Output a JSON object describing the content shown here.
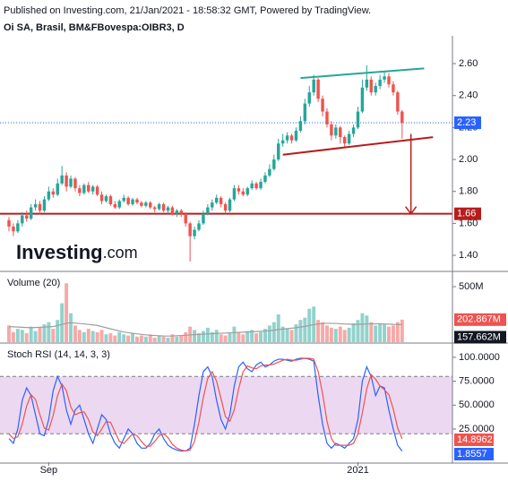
{
  "header": {
    "published": "Published on Investing.com, 21/Jan/2021 - 18:58:32 GMT, Powered by TradingView.",
    "symbol": "Oi SA, Brasil, BM&FBovespa:OIBR3, D"
  },
  "watermark": {
    "name": "Investing",
    "suffix": ".com"
  },
  "chart_data": [
    {
      "type": "candlestick",
      "xlim": [
        -2.03,
        100.4
      ],
      "ylim": [
        1.305,
        2.774
      ],
      "yticks": [
        {
          "value": 1.4,
          "label": "1.40"
        },
        {
          "value": 1.6,
          "label": "1.60"
        },
        {
          "value": 1.8,
          "label": "1.80"
        },
        {
          "value": 2.0,
          "label": "2.00"
        },
        {
          "value": 2.2,
          "label": "2.20"
        },
        {
          "value": 2.4,
          "label": "2.40"
        },
        {
          "value": 2.6,
          "label": "2.60"
        }
      ],
      "up_color": "#26a69a",
      "down_color": "#ef5350",
      "price_line": 2.23,
      "price_color": "#2962ff",
      "support_line": 1.66,
      "support_color": "#b71c1c",
      "trendlines": [
        {
          "color": "#26a69a",
          "x": [
            66,
            94
          ],
          "y": [
            2.51,
            2.57
          ]
        },
        {
          "color": "#b71c1c",
          "x": [
            62,
            96
          ],
          "y": [
            2.03,
            2.14
          ]
        }
      ],
      "arrow": {
        "color": "#b71c1c",
        "x": 91,
        "y": [
          2.16,
          1.66
        ]
      },
      "ohlc": [
        [
          1.62,
          1.64,
          1.55,
          1.58
        ],
        [
          1.58,
          1.6,
          1.52,
          1.55
        ],
        [
          1.55,
          1.62,
          1.54,
          1.6
        ],
        [
          1.6,
          1.67,
          1.58,
          1.65
        ],
        [
          1.65,
          1.68,
          1.61,
          1.63
        ],
        [
          1.63,
          1.72,
          1.62,
          1.7
        ],
        [
          1.7,
          1.75,
          1.68,
          1.72
        ],
        [
          1.72,
          1.74,
          1.66,
          1.68
        ],
        [
          1.68,
          1.77,
          1.67,
          1.75
        ],
        [
          1.75,
          1.83,
          1.74,
          1.8
        ],
        [
          1.8,
          1.82,
          1.76,
          1.78
        ],
        [
          1.78,
          1.88,
          1.77,
          1.85
        ],
        [
          1.85,
          1.96,
          1.84,
          1.9
        ],
        [
          1.9,
          1.92,
          1.8,
          1.83
        ],
        [
          1.83,
          1.9,
          1.82,
          1.88
        ],
        [
          1.88,
          1.89,
          1.8,
          1.82
        ],
        [
          1.82,
          1.84,
          1.77,
          1.79
        ],
        [
          1.79,
          1.85,
          1.78,
          1.84
        ],
        [
          1.84,
          1.86,
          1.79,
          1.8
        ],
        [
          1.8,
          1.84,
          1.78,
          1.83
        ],
        [
          1.83,
          1.84,
          1.77,
          1.78
        ],
        [
          1.78,
          1.8,
          1.72,
          1.74
        ],
        [
          1.74,
          1.78,
          1.73,
          1.77
        ],
        [
          1.77,
          1.78,
          1.71,
          1.72
        ],
        [
          1.72,
          1.74,
          1.69,
          1.7
        ],
        [
          1.7,
          1.75,
          1.69,
          1.74
        ],
        [
          1.74,
          1.78,
          1.73,
          1.76
        ],
        [
          1.76,
          1.77,
          1.71,
          1.72
        ],
        [
          1.72,
          1.76,
          1.71,
          1.75
        ],
        [
          1.75,
          1.76,
          1.72,
          1.73
        ],
        [
          1.73,
          1.74,
          1.7,
          1.71
        ],
        [
          1.71,
          1.74,
          1.7,
          1.73
        ],
        [
          1.73,
          1.74,
          1.69,
          1.7
        ],
        [
          1.7,
          1.71,
          1.67,
          1.69
        ],
        [
          1.69,
          1.73,
          1.68,
          1.72
        ],
        [
          1.72,
          1.73,
          1.67,
          1.68
        ],
        [
          1.68,
          1.71,
          1.66,
          1.7
        ],
        [
          1.7,
          1.71,
          1.65,
          1.66
        ],
        [
          1.66,
          1.69,
          1.64,
          1.68
        ],
        [
          1.68,
          1.69,
          1.64,
          1.66
        ],
        [
          1.66,
          1.67,
          1.58,
          1.6
        ],
        [
          1.6,
          1.61,
          1.36,
          1.52
        ],
        [
          1.52,
          1.58,
          1.5,
          1.56
        ],
        [
          1.56,
          1.62,
          1.55,
          1.6
        ],
        [
          1.6,
          1.68,
          1.59,
          1.66
        ],
        [
          1.66,
          1.72,
          1.65,
          1.7
        ],
        [
          1.7,
          1.75,
          1.68,
          1.73
        ],
        [
          1.73,
          1.78,
          1.72,
          1.76
        ],
        [
          1.76,
          1.77,
          1.7,
          1.72
        ],
        [
          1.72,
          1.73,
          1.66,
          1.68
        ],
        [
          1.68,
          1.76,
          1.67,
          1.75
        ],
        [
          1.75,
          1.84,
          1.74,
          1.82
        ],
        [
          1.82,
          1.84,
          1.78,
          1.8
        ],
        [
          1.8,
          1.82,
          1.77,
          1.78
        ],
        [
          1.78,
          1.83,
          1.77,
          1.82
        ],
        [
          1.82,
          1.87,
          1.81,
          1.85
        ],
        [
          1.85,
          1.86,
          1.81,
          1.82
        ],
        [
          1.82,
          1.88,
          1.81,
          1.86
        ],
        [
          1.86,
          1.92,
          1.85,
          1.9
        ],
        [
          1.9,
          1.97,
          1.89,
          1.94
        ],
        [
          1.94,
          2.03,
          1.93,
          2.0
        ],
        [
          2.0,
          2.13,
          1.99,
          2.1
        ],
        [
          2.1,
          2.16,
          2.08,
          2.12
        ],
        [
          2.12,
          2.17,
          2.1,
          2.15
        ],
        [
          2.15,
          2.16,
          2.1,
          2.12
        ],
        [
          2.12,
          2.2,
          2.11,
          2.18
        ],
        [
          2.18,
          2.27,
          2.17,
          2.24
        ],
        [
          2.24,
          2.38,
          2.22,
          2.35
        ],
        [
          2.35,
          2.46,
          2.33,
          2.42
        ],
        [
          2.42,
          2.53,
          2.4,
          2.5
        ],
        [
          2.5,
          2.51,
          2.36,
          2.38
        ],
        [
          2.38,
          2.4,
          2.27,
          2.3
        ],
        [
          2.3,
          2.32,
          2.2,
          2.22
        ],
        [
          2.22,
          2.24,
          2.12,
          2.15
        ],
        [
          2.15,
          2.22,
          2.13,
          2.2
        ],
        [
          2.2,
          2.21,
          2.1,
          2.14
        ],
        [
          2.14,
          2.15,
          2.07,
          2.1
        ],
        [
          2.1,
          2.18,
          2.09,
          2.16
        ],
        [
          2.16,
          2.22,
          2.14,
          2.2
        ],
        [
          2.2,
          2.33,
          2.19,
          2.3
        ],
        [
          2.3,
          2.5,
          2.29,
          2.45
        ],
        [
          2.45,
          2.59,
          2.43,
          2.5
        ],
        [
          2.5,
          2.52,
          2.4,
          2.42
        ],
        [
          2.42,
          2.48,
          2.4,
          2.46
        ],
        [
          2.46,
          2.53,
          2.44,
          2.5
        ],
        [
          2.5,
          2.55,
          2.48,
          2.52
        ],
        [
          2.52,
          2.54,
          2.45,
          2.47
        ],
        [
          2.47,
          2.49,
          2.4,
          2.42
        ],
        [
          2.42,
          2.43,
          2.28,
          2.3
        ],
        [
          2.3,
          2.31,
          2.13,
          2.23
        ]
      ]
    },
    {
      "type": "volume",
      "title": "Volume (20)",
      "xlim": [
        -2.03,
        100.4
      ],
      "ylim": [
        0,
        629
      ],
      "yticks": [
        {
          "value": 500,
          "label": "500M"
        }
      ],
      "up_color": "rgba(38,166,154,0.5)",
      "down_color": "rgba(239,83,80,0.5)",
      "values": [
        150,
        90,
        120,
        110,
        80,
        140,
        100,
        130,
        160,
        180,
        120,
        200,
        350,
        530,
        260,
        150,
        110,
        90,
        120,
        100,
        90,
        110,
        70,
        80,
        60,
        90,
        70,
        60,
        80,
        50,
        60,
        50,
        70,
        40,
        60,
        50,
        40,
        70,
        50,
        60,
        90,
        140,
        110,
        80,
        100,
        130,
        90,
        110,
        70,
        60,
        80,
        140,
        90,
        70,
        100,
        110,
        80,
        90,
        120,
        150,
        180,
        250,
        140,
        120,
        110,
        160,
        200,
        220,
        300,
        320,
        200,
        180,
        150,
        130,
        120,
        140,
        110,
        130,
        170,
        200,
        260,
        240,
        180,
        150,
        170,
        160,
        140,
        150,
        180,
        202.867
      ],
      "last_value_label": "202.867M",
      "label_color": "#ef5350",
      "ma": {
        "color": "#9e9e9e",
        "label_color": "#131722",
        "last_value_label": "157.662M",
        "values": [
          140,
          138,
          136,
          134,
          132,
          130,
          132,
          134,
          136,
          138,
          140,
          150,
          160,
          170,
          175,
          172,
          168,
          165,
          160,
          155,
          150,
          140,
          130,
          120,
          110,
          100,
          92,
          85,
          80,
          75,
          70,
          66,
          62,
          60,
          58,
          56,
          55,
          56,
          58,
          60,
          62,
          65,
          68,
          70,
          72,
          74,
          76,
          78,
          80,
          82,
          84,
          86,
          88,
          90,
          92,
          94,
          96,
          98,
          100,
          104,
          108,
          114,
          118,
          122,
          126,
          130,
          136,
          142,
          150,
          158,
          164,
          168,
          170,
          170,
          168,
          166,
          164,
          162,
          160,
          160,
          162,
          164,
          165,
          166,
          165,
          164,
          162,
          160,
          159,
          157.662
        ]
      }
    },
    {
      "type": "line",
      "title": "Stoch RSI (14, 14, 3, 3)",
      "xlim": [
        -2.03,
        100.4
      ],
      "ylim": [
        -9.7,
        114
      ],
      "band": [
        20,
        80
      ],
      "band_color": "rgba(156,39,176,0.18)",
      "yticks": [
        {
          "value": 100,
          "label": "100.0000"
        },
        {
          "value": 75,
          "label": "75.0000"
        },
        {
          "value": 50,
          "label": "50.0000"
        },
        {
          "value": 25,
          "label": "25.0000"
        }
      ],
      "xticks": [
        {
          "value": 9,
          "label": "Sep"
        },
        {
          "value": 79,
          "label": "2021"
        }
      ],
      "series": [
        {
          "color": "#2962ff",
          "last_value_label": "1.8557",
          "values": [
            15,
            10,
            25,
            55,
            68,
            60,
            40,
            20,
            18,
            35,
            65,
            80,
            70,
            45,
            30,
            45,
            50,
            35,
            20,
            10,
            25,
            40,
            35,
            20,
            10,
            5,
            15,
            25,
            20,
            10,
            5,
            5,
            10,
            20,
            25,
            15,
            8,
            5,
            3,
            2,
            2,
            5,
            30,
            60,
            85,
            90,
            80,
            55,
            35,
            25,
            40,
            70,
            90,
            95,
            88,
            85,
            92,
            95,
            90,
            92,
            96,
            98,
            98,
            97,
            96,
            98,
            99,
            99,
            98,
            96,
            60,
            30,
            10,
            5,
            10,
            8,
            5,
            10,
            15,
            35,
            75,
            90,
            80,
            60,
            70,
            68,
            45,
            25,
            8,
            1.8557
          ]
        },
        {
          "color": "#ef5350",
          "last_value_label": "14.8962",
          "values": [
            20,
            15,
            17,
            30,
            49,
            61,
            56,
            40,
            26,
            24,
            39,
            60,
            72,
            65,
            48,
            40,
            42,
            43,
            35,
            22,
            18,
            25,
            33,
            32,
            22,
            12,
            10,
            15,
            20,
            18,
            12,
            7,
            7,
            12,
            18,
            20,
            16,
            9,
            5,
            3,
            2,
            3,
            12,
            32,
            58,
            78,
            85,
            75,
            57,
            38,
            33,
            45,
            67,
            85,
            91,
            89,
            88,
            91,
            92,
            92,
            93,
            95,
            97,
            98,
            97,
            97,
            98,
            99,
            99,
            98,
            85,
            62,
            33,
            15,
            8,
            8,
            8,
            8,
            10,
            20,
            42,
            67,
            82,
            77,
            70,
            66,
            61,
            46,
            26,
            14.8962
          ]
        }
      ]
    }
  ]
}
